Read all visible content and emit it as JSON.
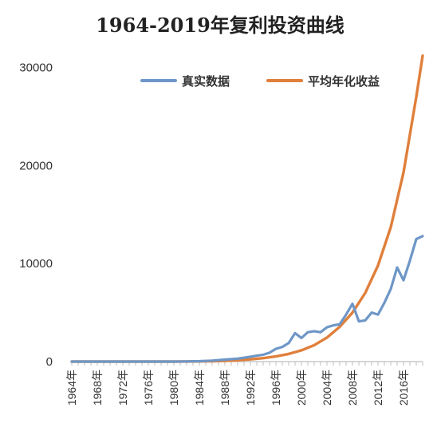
{
  "chart_data": {
    "type": "line",
    "title": "1964-2019年复利投资曲线",
    "xlabel": "",
    "ylabel": "",
    "x_range": [
      1964,
      2019
    ],
    "ylim": [
      0,
      32000
    ],
    "yticks": [
      0,
      10000,
      20000,
      30000
    ],
    "ytick_labels": [
      "0",
      "10000",
      "20000",
      "30000"
    ],
    "x_tick_labels": [
      "1964年",
      "1968年",
      "1972年",
      "1976年",
      "1980年",
      "1984年",
      "1988年",
      "1992年",
      "1996年",
      "2000年",
      "2004年",
      "2008年",
      "2012年",
      "2016年"
    ],
    "grid": false,
    "legend_position": "top-right",
    "series": [
      {
        "name": "真实数据",
        "color": "#6e97c7",
        "x": [
          1964,
          1966,
          1968,
          1970,
          1972,
          1974,
          1976,
          1978,
          1980,
          1982,
          1984,
          1986,
          1988,
          1990,
          1992,
          1993,
          1994,
          1995,
          1996,
          1997,
          1998,
          1999,
          2000,
          2001,
          2002,
          2003,
          2004,
          2005,
          2006,
          2007,
          2008,
          2009,
          2010,
          2011,
          2012,
          2013,
          2014,
          2015,
          2016,
          2017,
          2018,
          2019
        ],
        "y": [
          0,
          0,
          0,
          0,
          0,
          0,
          0,
          0,
          0,
          20,
          40,
          100,
          200,
          300,
          500,
          600,
          700,
          900,
          1300,
          1500,
          1900,
          2900,
          2400,
          3000,
          3100,
          3000,
          3500,
          3700,
          3800,
          4800,
          5900,
          4100,
          4200,
          5000,
          4800,
          6000,
          7400,
          9600,
          8300,
          10300,
          12500,
          12800
        ]
      },
      {
        "name": "平均年化收益",
        "color": "#e07f3b",
        "x": [
          1964,
          1968,
          1972,
          1976,
          1980,
          1984,
          1986,
          1988,
          1990,
          1992,
          1994,
          1996,
          1998,
          2000,
          2002,
          2004,
          2006,
          2008,
          2010,
          2012,
          2014,
          2016,
          2018,
          2019
        ],
        "y": [
          0,
          0,
          0,
          0,
          0,
          20,
          40,
          80,
          140,
          230,
          350,
          530,
          780,
          1150,
          1680,
          2450,
          3550,
          5000,
          7000,
          9800,
          13700,
          19300,
          27000,
          31200
        ]
      }
    ]
  }
}
